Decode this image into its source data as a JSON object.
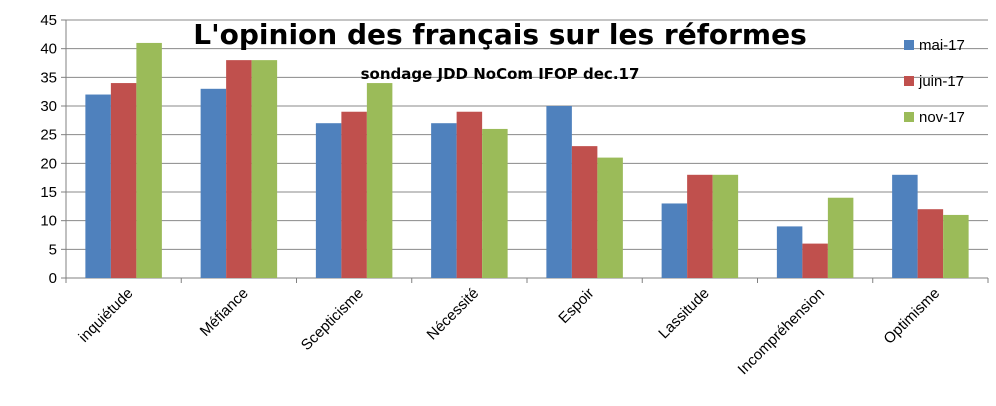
{
  "chart_data": {
    "type": "bar",
    "title": "L'opinion des français sur les réformes",
    "subtitle": "sondage JDD NoCom IFOP dec.17",
    "xlabel": "",
    "ylabel": "",
    "ylim": [
      0,
      45
    ],
    "y_ticks": [
      0,
      5,
      10,
      15,
      20,
      25,
      30,
      35,
      40,
      45
    ],
    "grid": true,
    "legend_position": "right",
    "categories": [
      "inquiétude",
      "Méfiance",
      "Scepticisme",
      "Nécessité",
      "Espoir",
      "Lassitude",
      "Incompréhension",
      "Optimisme"
    ],
    "series": [
      {
        "name": "mai-17",
        "color": "#4F81BD",
        "values": [
          32,
          33,
          27,
          27,
          30,
          13,
          9,
          18
        ]
      },
      {
        "name": "juin-17",
        "color": "#C0504D",
        "values": [
          34,
          38,
          29,
          29,
          23,
          18,
          6,
          12
        ]
      },
      {
        "name": "nov-17",
        "color": "#9BBB59",
        "values": [
          41,
          38,
          34,
          26,
          21,
          18,
          14,
          11
        ]
      }
    ]
  }
}
